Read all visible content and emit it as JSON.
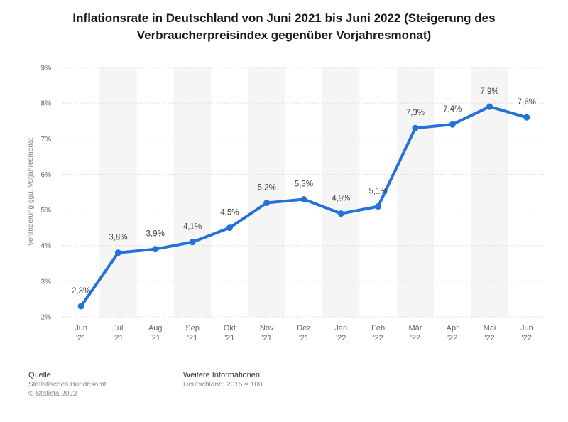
{
  "chart_data": {
    "type": "line",
    "title": "Inflationsrate in Deutschland von Juni 2021 bis Juni 2022 (Steigerung des Verbraucherpreisindex gegenüber Vorjahresmonat)",
    "ylabel": "Veränderung ggü. Vorjahresmonat",
    "xlabel": "",
    "categories": [
      [
        "Jun",
        "'21"
      ],
      [
        "Jul",
        "'21"
      ],
      [
        "Aug",
        "'21"
      ],
      [
        "Sep",
        "'21"
      ],
      [
        "Okt",
        "'21"
      ],
      [
        "Nov",
        "'21"
      ],
      [
        "Dez",
        "'21"
      ],
      [
        "Jan",
        "'22"
      ],
      [
        "Feb",
        "'22"
      ],
      [
        "Mär",
        "'22"
      ],
      [
        "Apr",
        "'22"
      ],
      [
        "Mai",
        "'22"
      ],
      [
        "Jun",
        "'22"
      ]
    ],
    "values": [
      2.3,
      3.8,
      3.9,
      4.1,
      4.5,
      5.2,
      5.3,
      4.9,
      5.1,
      7.3,
      7.4,
      7.9,
      7.6
    ],
    "data_labels": [
      "2,3%",
      "3,8%",
      "3,9%",
      "4,1%",
      "4,5%",
      "5,2%",
      "5,3%",
      "4,9%",
      "5,1%",
      "7,3%",
      "7,4%",
      "7,9%",
      "7,6%"
    ],
    "ylim": [
      2,
      9
    ],
    "yticks": [
      2,
      3,
      4,
      5,
      6,
      7,
      8,
      9
    ],
    "ytick_labels": [
      "2%",
      "3%",
      "4%",
      "5%",
      "6%",
      "7%",
      "8%",
      "9%"
    ],
    "grid": true,
    "line_color": "#2472d9",
    "gridline_color": "#dddddd",
    "band_color": "#f5f5f5"
  },
  "footer": {
    "source_heading": "Quelle",
    "source_line1": "Statistisches Bundesamt",
    "source_line2": "© Statista 2022",
    "info_heading": "Weitere Informationen:",
    "info_line1": "Deutschland; 2015 = 100"
  }
}
